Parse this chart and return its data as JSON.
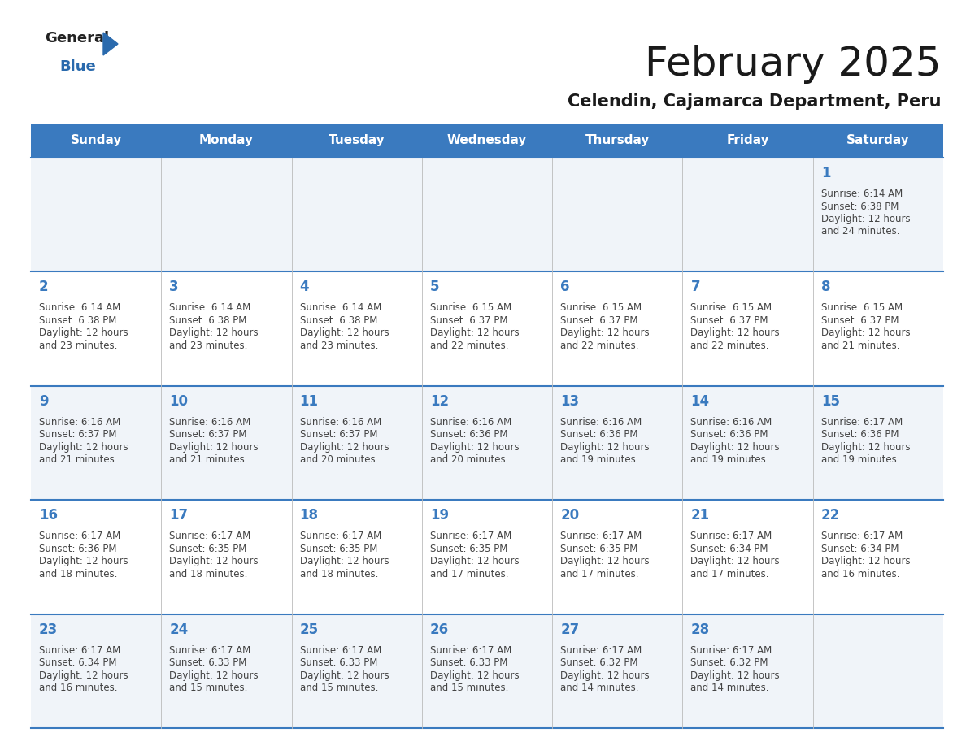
{
  "title": "February 2025",
  "subtitle": "Celendin, Cajamarca Department, Peru",
  "header_color": "#3a7abf",
  "header_text_color": "#ffffff",
  "grid_line_color": "#3a7abf",
  "day_names": [
    "Sunday",
    "Monday",
    "Tuesday",
    "Wednesday",
    "Thursday",
    "Friday",
    "Saturday"
  ],
  "background_color": "#ffffff",
  "cell_bg_even": "#ffffff",
  "cell_bg_odd": "#f0f4f9",
  "title_color": "#1a1a1a",
  "subtitle_color": "#1a1a1a",
  "day_number_color": "#3a7abf",
  "cell_text_color": "#444444",
  "calendar": [
    [
      null,
      null,
      null,
      null,
      null,
      null,
      {
        "day": 1,
        "sunrise": "6:14 AM",
        "sunset": "6:38 PM",
        "daylight": "12 hours and 24 minutes."
      }
    ],
    [
      {
        "day": 2,
        "sunrise": "6:14 AM",
        "sunset": "6:38 PM",
        "daylight": "12 hours and 23 minutes."
      },
      {
        "day": 3,
        "sunrise": "6:14 AM",
        "sunset": "6:38 PM",
        "daylight": "12 hours and 23 minutes."
      },
      {
        "day": 4,
        "sunrise": "6:14 AM",
        "sunset": "6:38 PM",
        "daylight": "12 hours and 23 minutes."
      },
      {
        "day": 5,
        "sunrise": "6:15 AM",
        "sunset": "6:37 PM",
        "daylight": "12 hours and 22 minutes."
      },
      {
        "day": 6,
        "sunrise": "6:15 AM",
        "sunset": "6:37 PM",
        "daylight": "12 hours and 22 minutes."
      },
      {
        "day": 7,
        "sunrise": "6:15 AM",
        "sunset": "6:37 PM",
        "daylight": "12 hours and 22 minutes."
      },
      {
        "day": 8,
        "sunrise": "6:15 AM",
        "sunset": "6:37 PM",
        "daylight": "12 hours and 21 minutes."
      }
    ],
    [
      {
        "day": 9,
        "sunrise": "6:16 AM",
        "sunset": "6:37 PM",
        "daylight": "12 hours and 21 minutes."
      },
      {
        "day": 10,
        "sunrise": "6:16 AM",
        "sunset": "6:37 PM",
        "daylight": "12 hours and 21 minutes."
      },
      {
        "day": 11,
        "sunrise": "6:16 AM",
        "sunset": "6:37 PM",
        "daylight": "12 hours and 20 minutes."
      },
      {
        "day": 12,
        "sunrise": "6:16 AM",
        "sunset": "6:36 PM",
        "daylight": "12 hours and 20 minutes."
      },
      {
        "day": 13,
        "sunrise": "6:16 AM",
        "sunset": "6:36 PM",
        "daylight": "12 hours and 19 minutes."
      },
      {
        "day": 14,
        "sunrise": "6:16 AM",
        "sunset": "6:36 PM",
        "daylight": "12 hours and 19 minutes."
      },
      {
        "day": 15,
        "sunrise": "6:17 AM",
        "sunset": "6:36 PM",
        "daylight": "12 hours and 19 minutes."
      }
    ],
    [
      {
        "day": 16,
        "sunrise": "6:17 AM",
        "sunset": "6:36 PM",
        "daylight": "12 hours and 18 minutes."
      },
      {
        "day": 17,
        "sunrise": "6:17 AM",
        "sunset": "6:35 PM",
        "daylight": "12 hours and 18 minutes."
      },
      {
        "day": 18,
        "sunrise": "6:17 AM",
        "sunset": "6:35 PM",
        "daylight": "12 hours and 18 minutes."
      },
      {
        "day": 19,
        "sunrise": "6:17 AM",
        "sunset": "6:35 PM",
        "daylight": "12 hours and 17 minutes."
      },
      {
        "day": 20,
        "sunrise": "6:17 AM",
        "sunset": "6:35 PM",
        "daylight": "12 hours and 17 minutes."
      },
      {
        "day": 21,
        "sunrise": "6:17 AM",
        "sunset": "6:34 PM",
        "daylight": "12 hours and 17 minutes."
      },
      {
        "day": 22,
        "sunrise": "6:17 AM",
        "sunset": "6:34 PM",
        "daylight": "12 hours and 16 minutes."
      }
    ],
    [
      {
        "day": 23,
        "sunrise": "6:17 AM",
        "sunset": "6:34 PM",
        "daylight": "12 hours and 16 minutes."
      },
      {
        "day": 24,
        "sunrise": "6:17 AM",
        "sunset": "6:33 PM",
        "daylight": "12 hours and 15 minutes."
      },
      {
        "day": 25,
        "sunrise": "6:17 AM",
        "sunset": "6:33 PM",
        "daylight": "12 hours and 15 minutes."
      },
      {
        "day": 26,
        "sunrise": "6:17 AM",
        "sunset": "6:33 PM",
        "daylight": "12 hours and 15 minutes."
      },
      {
        "day": 27,
        "sunrise": "6:17 AM",
        "sunset": "6:32 PM",
        "daylight": "12 hours and 14 minutes."
      },
      {
        "day": 28,
        "sunrise": "6:17 AM",
        "sunset": "6:32 PM",
        "daylight": "12 hours and 14 minutes."
      },
      null
    ]
  ]
}
